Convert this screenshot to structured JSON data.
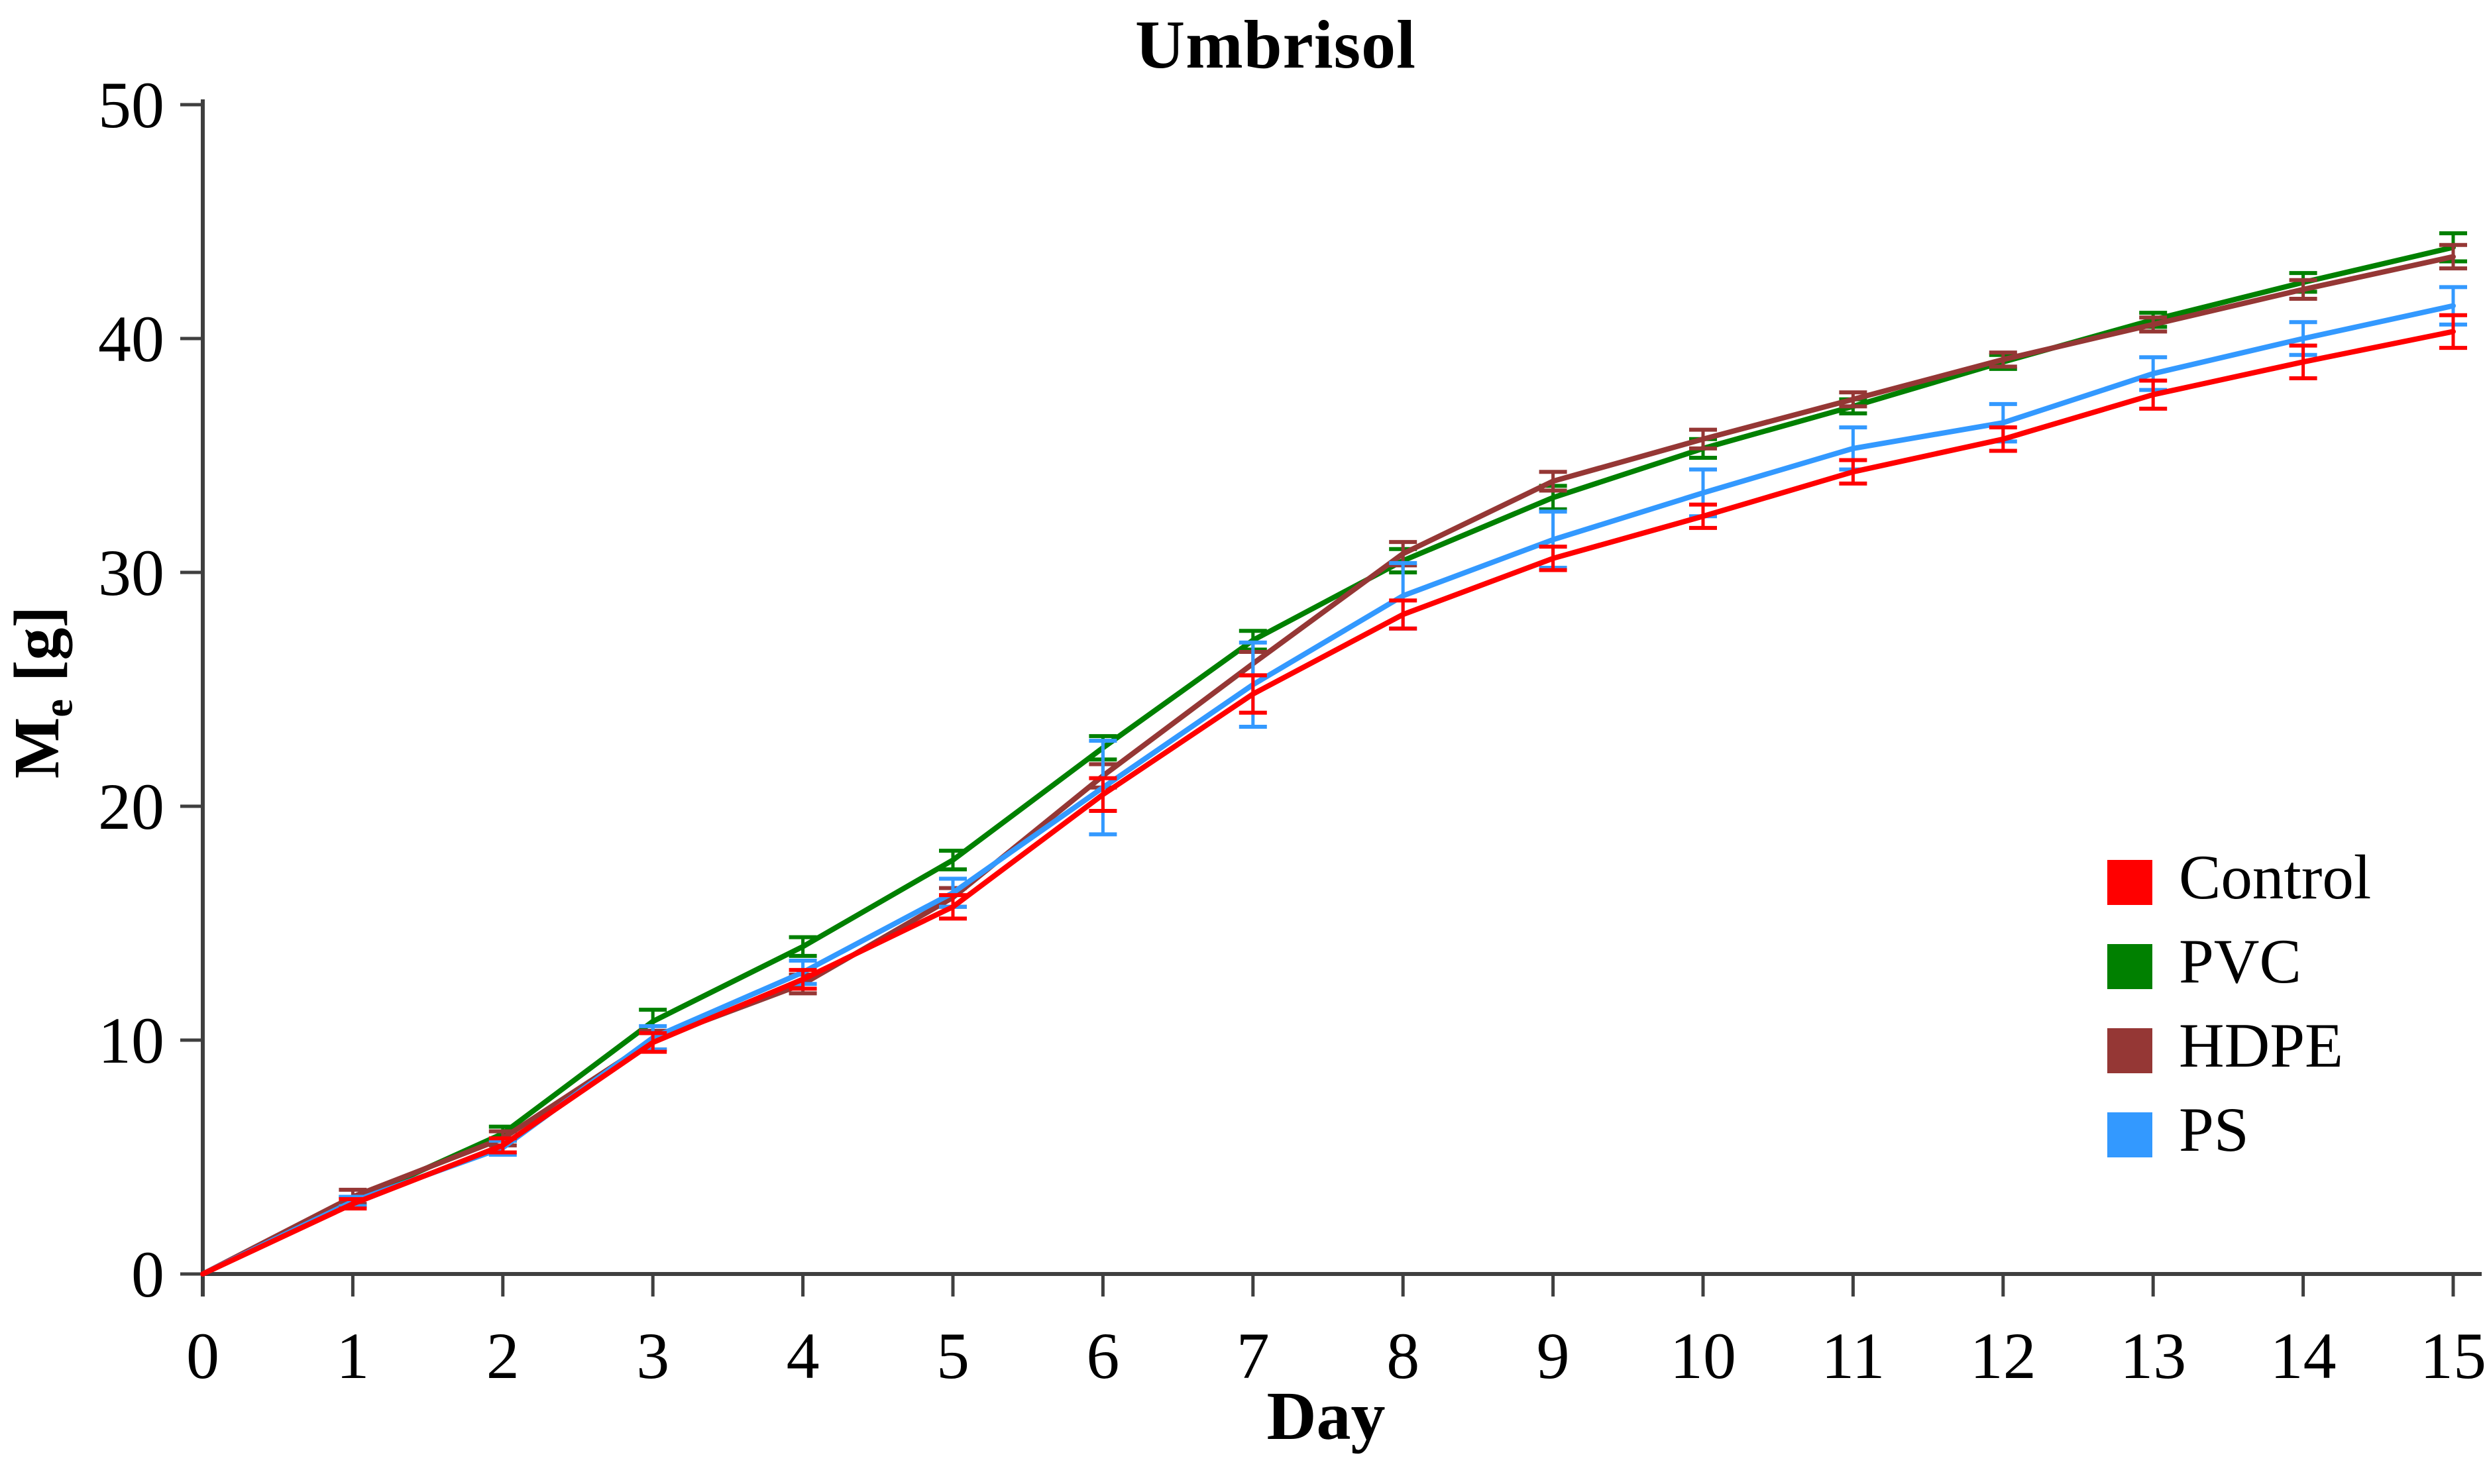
{
  "chart_data": {
    "type": "line",
    "title": "Umbrisol",
    "xlabel": "Day",
    "ylabel": {
      "base": "M",
      "sub": "e",
      "unit": "[g]"
    },
    "x": [
      0,
      1,
      2,
      3,
      4,
      5,
      6,
      7,
      8,
      9,
      10,
      11,
      12,
      13,
      14,
      15
    ],
    "xlim": [
      0,
      15
    ],
    "ylim": [
      0,
      50
    ],
    "yticks": [
      0,
      10,
      20,
      30,
      40,
      50
    ],
    "grid": false,
    "legend_position": "middle-right",
    "axis_color": "#3f3f3f",
    "series": [
      {
        "name": "Control",
        "color": "#FF0000",
        "values": [
          0,
          3.0,
          5.5,
          9.9,
          12.6,
          15.7,
          20.5,
          24.8,
          28.2,
          30.6,
          32.4,
          34.3,
          35.7,
          37.6,
          39.0,
          40.3
        ],
        "err": [
          0,
          0.2,
          0.3,
          0.4,
          0.4,
          0.5,
          0.7,
          0.8,
          0.6,
          0.5,
          0.5,
          0.5,
          0.5,
          0.6,
          0.7,
          0.7
        ]
      },
      {
        "name": "PVC",
        "color": "#008000",
        "values": [
          0,
          3.1,
          6.0,
          10.8,
          14.0,
          17.7,
          22.5,
          27.1,
          30.5,
          33.2,
          35.3,
          37.1,
          39.0,
          40.8,
          42.4,
          43.9
        ],
        "err": [
          0,
          0.2,
          0.3,
          0.5,
          0.4,
          0.4,
          0.5,
          0.4,
          0.5,
          0.5,
          0.4,
          0.3,
          0.3,
          0.3,
          0.4,
          0.6
        ]
      },
      {
        "name": "HDPE",
        "color": "#953735",
        "values": [
          0,
          3.3,
          5.8,
          10.0,
          12.4,
          16.1,
          21.3,
          26.1,
          30.8,
          33.9,
          35.7,
          37.4,
          39.1,
          40.6,
          42.1,
          43.5
        ],
        "err": [
          0,
          0.3,
          0.3,
          0.4,
          0.4,
          0.4,
          0.5,
          0.5,
          0.5,
          0.4,
          0.4,
          0.3,
          0.3,
          0.3,
          0.4,
          0.5
        ]
      },
      {
        "name": "PS",
        "color": "#3399FF",
        "values": [
          0,
          3.1,
          5.4,
          10.1,
          12.9,
          16.3,
          20.8,
          25.2,
          29.0,
          31.4,
          33.4,
          35.3,
          36.4,
          38.5,
          40.0,
          41.4
        ],
        "err": [
          0,
          0.2,
          0.3,
          0.5,
          0.5,
          0.6,
          2.0,
          1.8,
          1.4,
          1.2,
          1.0,
          0.9,
          0.8,
          0.7,
          0.7,
          0.8
        ]
      }
    ]
  }
}
